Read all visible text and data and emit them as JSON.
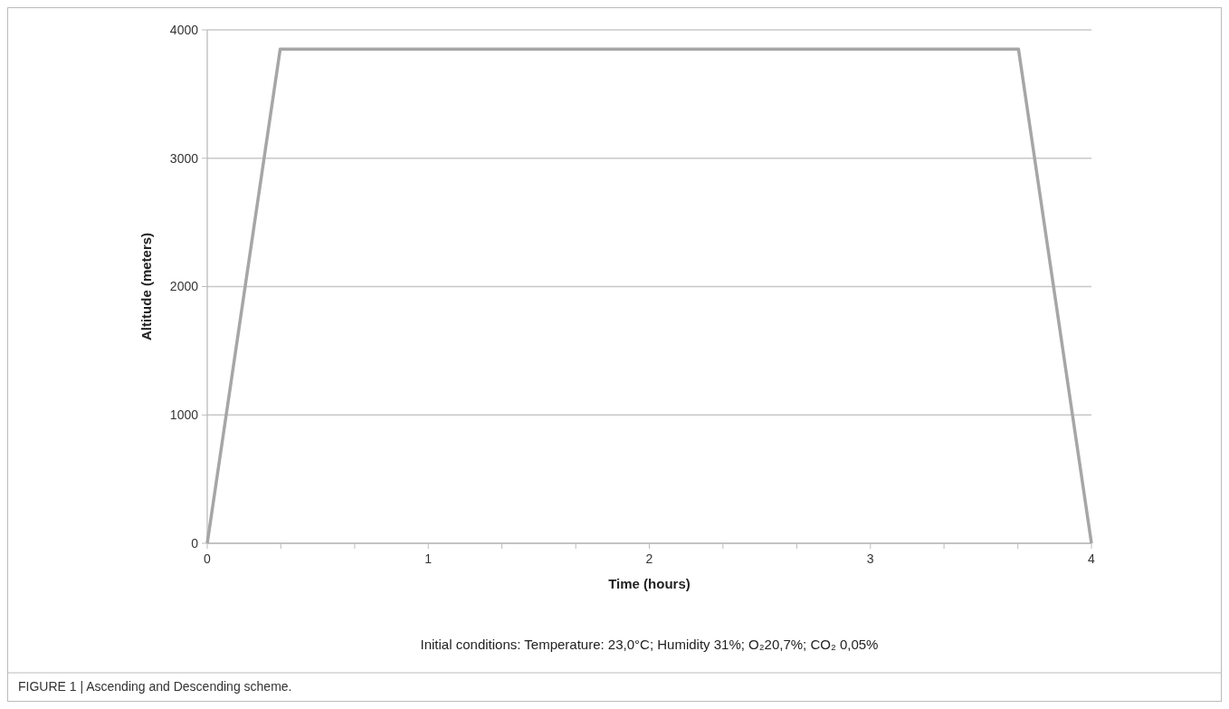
{
  "chart_data": {
    "type": "line",
    "xlabel": "Time (hours)",
    "ylabel": "Altitude (meters)",
    "x": [
      0,
      0.33,
      3.67,
      4
    ],
    "series": [
      {
        "color": "#a6a6a6",
        "values": [
          0,
          3850,
          3850,
          0
        ]
      }
    ],
    "xlim": [
      0,
      4
    ],
    "xticks": [
      0,
      {
        "value": 0.333,
        "label": null
      },
      {
        "value": 0.667,
        "label": null
      },
      1,
      {
        "value": 1.333,
        "label": null
      },
      {
        "value": 1.667,
        "label": null
      },
      2,
      {
        "value": 2.333,
        "label": null
      },
      {
        "value": 2.667,
        "label": null
      },
      3,
      {
        "value": 3.333,
        "label": null
      },
      {
        "value": 3.667,
        "label": null
      },
      4
    ],
    "ylim": [
      0,
      4000
    ],
    "yticks": [
      0,
      1000,
      2000,
      3000,
      4000
    ],
    "grid": "y",
    "marker": "none",
    "line_style": "solid",
    "annotations": [
      "Initial conditions: Temperature: 23,0°C; Humidity 31%; O₂20,7%; CO₂ 0,05%",
      "FIGURE 1 | Ascending and Descending scheme."
    ]
  }
}
